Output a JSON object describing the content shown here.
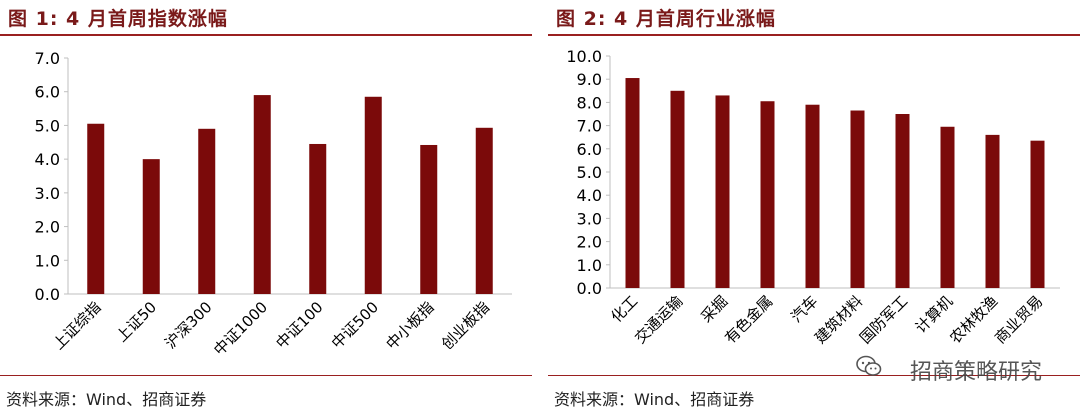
{
  "figures": [
    {
      "title": "图 1:  4 月首周指数涨幅",
      "source": "资料来源：Wind、招商证券"
    },
    {
      "title": "图 2:  4 月首周行业涨幅",
      "source": "资料来源：Wind、招商证券"
    }
  ],
  "watermark": "招商策略研究",
  "colors": {
    "bar": "#7b0a0a",
    "accent": "#9a2020",
    "axis": "#bfbfbf"
  },
  "chart_data": [
    {
      "type": "bar",
      "title": "图 1:  4 月首周指数涨幅",
      "categories": [
        "上证综指",
        "上证50",
        "沪深300",
        "中证1000",
        "中证100",
        "中证500",
        "中小板指",
        "创业板指"
      ],
      "values": [
        5.05,
        4.0,
        4.9,
        5.9,
        4.45,
        5.85,
        4.42,
        4.93
      ],
      "yticks": [
        "0.0",
        "1.0",
        "2.0",
        "3.0",
        "4.0",
        "5.0",
        "6.0",
        "7.0"
      ],
      "ylim": [
        0,
        7
      ],
      "grid": false,
      "xlabel": "",
      "ylabel": ""
    },
    {
      "type": "bar",
      "title": "图 2:  4 月首周行业涨幅",
      "categories": [
        "化工",
        "交通运输",
        "采掘",
        "有色金属",
        "汽车",
        "建筑材料",
        "国防军工",
        "计算机",
        "农林牧渔",
        "商业贸易"
      ],
      "values": [
        9.05,
        8.5,
        8.3,
        8.05,
        7.9,
        7.65,
        7.5,
        6.95,
        6.6,
        6.35
      ],
      "yticks": [
        "0.0",
        "1.0",
        "2.0",
        "3.0",
        "4.0",
        "5.0",
        "6.0",
        "7.0",
        "8.0",
        "9.0",
        "10.0"
      ],
      "ylim": [
        0,
        10
      ],
      "grid": false,
      "xlabel": "",
      "ylabel": ""
    }
  ]
}
